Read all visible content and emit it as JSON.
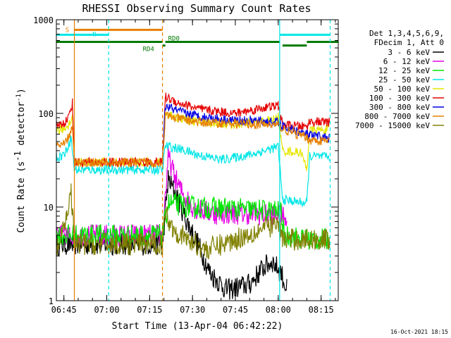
{
  "chart_data": {
    "type": "line",
    "title": "RHESSI Observing Summary Count Rates",
    "xlabel": "Start Time (13-Apr-04 06:42:22)",
    "ylabel_main": "Count Rate (s",
    "ylabel_sup1": "-1",
    "ylabel_mid": " detector",
    "ylabel_sup2": "-1",
    "ylabel_end": ")",
    "y_scale": "log",
    "ylim": [
      1,
      1000
    ],
    "xlim": [
      "06:42:22",
      "08:21:00"
    ],
    "x_ticks": [
      "06:45",
      "07:00",
      "07:15",
      "07:30",
      "07:45",
      "08:00",
      "08:15"
    ],
    "y_ticks": [
      "1",
      "10",
      "100",
      "1000"
    ],
    "grid": false,
    "legend_header": [
      "Det 1,3,4,5,6,9,",
      "FDecim 1, Att 0"
    ],
    "legend_position": "right",
    "timestamp": "16-Oct-2021 18:15",
    "series": [
      {
        "name": "3 - 6 keV",
        "color": "#000000",
        "points": [
          [
            "06:42:22",
            4
          ],
          [
            "06:47:00",
            4
          ],
          [
            "06:48:40",
            4
          ],
          [
            "07:19:30",
            4
          ],
          [
            "07:21:30",
            20
          ],
          [
            "07:25:00",
            12
          ],
          [
            "07:28:00",
            7
          ],
          [
            "07:32:00",
            4
          ],
          [
            "07:36:00",
            2
          ],
          [
            "07:42:00",
            1.3
          ],
          [
            "07:50:00",
            1.5
          ],
          [
            "07:55:00",
            2.3
          ],
          [
            "07:58:00",
            2.6
          ],
          [
            "08:01:00",
            2.0
          ],
          [
            "08:03:00",
            1.3
          ]
        ]
      },
      {
        "name": "6 - 12 keV",
        "color": "#e600e6",
        "points": [
          [
            "06:42:22",
            5
          ],
          [
            "06:47:00",
            5
          ],
          [
            "06:48:40",
            5
          ],
          [
            "07:19:30",
            5
          ],
          [
            "07:21:30",
            35
          ],
          [
            "07:24:00",
            20
          ],
          [
            "07:27:00",
            13
          ],
          [
            "07:31:00",
            9.5
          ],
          [
            "07:38:00",
            8.5
          ],
          [
            "07:50:00",
            8.5
          ],
          [
            "08:01:00",
            8
          ],
          [
            "08:03:00",
            8
          ]
        ]
      },
      {
        "name": "12 - 25 keV",
        "color": "#00e600",
        "points": [
          [
            "06:42:22",
            5
          ],
          [
            "06:47:00",
            5
          ],
          [
            "06:48:40",
            5
          ],
          [
            "07:19:30",
            5
          ],
          [
            "07:21:30",
            11
          ],
          [
            "07:30:00",
            10
          ],
          [
            "07:45:00",
            9.5
          ],
          [
            "08:01:00",
            9
          ],
          [
            "08:02:00",
            5
          ],
          [
            "08:10:00",
            4.5
          ],
          [
            "08:18:00",
            4.5
          ]
        ]
      },
      {
        "name": "25 - 50 keV",
        "color": "#00e6e6",
        "points": [
          [
            "06:42:22",
            34
          ],
          [
            "06:44:00",
            35
          ],
          [
            "06:45:30",
            38
          ],
          [
            "06:46:30",
            45
          ],
          [
            "06:47:30",
            55
          ],
          [
            "06:48:40",
            25
          ],
          [
            "07:19:30",
            25
          ],
          [
            "07:20:30",
            45
          ],
          [
            "07:25:00",
            42
          ],
          [
            "07:32:00",
            36
          ],
          [
            "07:40:00",
            32
          ],
          [
            "07:50:00",
            36
          ],
          [
            "08:00:00",
            44
          ],
          [
            "08:01:30",
            12
          ],
          [
            "08:10:00",
            11
          ],
          [
            "08:11:00",
            35
          ],
          [
            "08:18:00",
            34
          ]
        ]
      },
      {
        "name": "50 - 100 keV",
        "color": "#e6e600",
        "points": [
          [
            "06:42:22",
            65
          ],
          [
            "06:45:00",
            68
          ],
          [
            "06:46:30",
            75
          ],
          [
            "06:48:00",
            90
          ],
          [
            "06:48:40",
            30
          ],
          [
            "07:19:30",
            30
          ],
          [
            "07:20:30",
            100
          ],
          [
            "07:25:00",
            90
          ],
          [
            "07:33:00",
            80
          ],
          [
            "07:45:00",
            76
          ],
          [
            "07:58:00",
            85
          ],
          [
            "08:00:00",
            92
          ],
          [
            "08:01:30",
            40
          ],
          [
            "08:08:00",
            38
          ],
          [
            "08:10:00",
            25
          ],
          [
            "08:11:00",
            65
          ],
          [
            "08:18:00",
            68
          ]
        ]
      },
      {
        "name": "100 - 300 keV",
        "color": "#e60000",
        "points": [
          [
            "06:42:22",
            75
          ],
          [
            "06:45:00",
            78
          ],
          [
            "06:46:30",
            90
          ],
          [
            "06:48:00",
            130
          ],
          [
            "06:48:40",
            30
          ],
          [
            "07:19:30",
            30
          ],
          [
            "07:20:30",
            150
          ],
          [
            "07:25:00",
            130
          ],
          [
            "07:33:00",
            110
          ],
          [
            "07:45:00",
            100
          ],
          [
            "07:55:00",
            115
          ],
          [
            "08:00:00",
            120
          ],
          [
            "08:01:30",
            75
          ],
          [
            "08:10:00",
            72
          ],
          [
            "08:11:00",
            82
          ],
          [
            "08:18:00",
            80
          ]
        ]
      },
      {
        "name": "300 - 800 keV",
        "color": "#0000e6",
        "points": [
          [
            "07:19:30",
            30
          ],
          [
            "07:20:30",
            120
          ],
          [
            "07:25:00",
            105
          ],
          [
            "07:33:00",
            92
          ],
          [
            "07:45:00",
            84
          ],
          [
            "07:55:00",
            82
          ],
          [
            "08:00:00",
            80
          ],
          [
            "08:01:30",
            72
          ],
          [
            "08:10:00",
            60
          ],
          [
            "08:11:00",
            58
          ],
          [
            "08:18:00",
            55
          ]
        ]
      },
      {
        "name": "800 - 7000 keV",
        "color": "#e68000",
        "points": [
          [
            "06:42:22",
            45
          ],
          [
            "06:45:00",
            46
          ],
          [
            "06:46:30",
            55
          ],
          [
            "06:48:00",
            70
          ],
          [
            "06:48:40",
            30
          ],
          [
            "07:19:30",
            30
          ],
          [
            "07:20:30",
            95
          ],
          [
            "07:25:00",
            88
          ],
          [
            "07:33:00",
            80
          ],
          [
            "07:45:00",
            78
          ],
          [
            "07:55:00",
            76
          ],
          [
            "08:00:00",
            75
          ],
          [
            "08:01:30",
            68
          ],
          [
            "08:10:00",
            55
          ],
          [
            "08:11:00",
            52
          ],
          [
            "08:18:00",
            50
          ]
        ]
      },
      {
        "name": "7000 - 15000 keV",
        "color": "#808000",
        "points": [
          [
            "06:42:22",
            3.5
          ],
          [
            "06:44:00",
            4.5
          ],
          [
            "06:46:00",
            8
          ],
          [
            "06:47:30",
            15
          ],
          [
            "06:48:40",
            4
          ],
          [
            "07:19:30",
            4
          ],
          [
            "07:20:30",
            9
          ],
          [
            "07:23:00",
            6
          ],
          [
            "07:28:00",
            4.5
          ],
          [
            "07:35:00",
            3.5
          ],
          [
            "07:45:00",
            4.5
          ],
          [
            "07:55:00",
            6
          ],
          [
            "08:00:00",
            6.5
          ],
          [
            "08:01:30",
            4.5
          ],
          [
            "08:18:00",
            4.5
          ]
        ]
      }
    ],
    "markers": [
      {
        "time": "06:48:40",
        "style": "solid",
        "color": "#e68000"
      },
      {
        "time": "07:00:40",
        "style": "dashed",
        "color": "#00e6e6"
      },
      {
        "time": "07:19:30",
        "style": "dashed",
        "color": "#e68000"
      },
      {
        "time": "08:00:30",
        "style": "solid",
        "color": "#00e6e6"
      },
      {
        "time": "08:18:10",
        "style": "dashed",
        "color": "#00e6e6"
      }
    ],
    "flags": [
      {
        "label": "S",
        "color": "#e68000",
        "start": "06:48:40",
        "end": "07:19:30",
        "y": 780
      },
      {
        "label": "N",
        "color": "#00e6e6",
        "start": "06:42:22",
        "end": "07:00:40",
        "y": 690
      },
      {
        "label": "",
        "color": "#00e6e6",
        "start": "08:00:30",
        "end": "08:18:10",
        "y": 690
      },
      {
        "label": "RD0",
        "color": "#007a00",
        "start": "06:42:22",
        "end": "08:21:00",
        "y": 580,
        "gaps": [
          [
            "07:19:30",
            "07:20:30"
          ],
          [
            "08:00:40",
            "08:10:00"
          ]
        ]
      },
      {
        "label": "RD4",
        "color": "#007a00",
        "start": "07:19:30",
        "end": "07:20:30",
        "y": 530
      },
      {
        "label": "",
        "color": "#007a00",
        "start": "08:01:30",
        "end": "08:10:00",
        "y": 530
      }
    ]
  }
}
